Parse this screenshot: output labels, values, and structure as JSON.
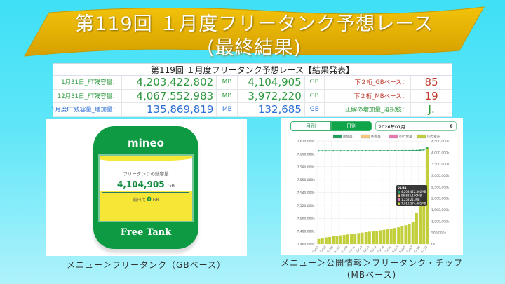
{
  "banner": {
    "line1": "第119回 １月度フリータンク予想レース",
    "line2": "(最終結果)"
  },
  "table": {
    "title": "第119回 １月度フリータンク予想レース【結果発表】",
    "rows": [
      {
        "label": "1月31日_FT残容量：",
        "mb": "4,203,422,802",
        "mb_unit": "MB",
        "gb": "4,104,905",
        "gb_unit": "GB",
        "k": "下２桁_GBベース：",
        "v": "85",
        "color": "#2e9a3e",
        "kcolor": "#c0392b"
      },
      {
        "label": "12月31日_FT残容量：",
        "mb": "4,067,552,983",
        "mb_unit": "MB",
        "gb": "3,972,220",
        "gb_unit": "GB",
        "k": "下２桁_MBベース：",
        "v": "19",
        "color": "#2e9a3e",
        "kcolor": "#c0392b"
      },
      {
        "label": "1月度FT残容量_増加量：",
        "mb": "135,869,819",
        "mb_unit": "MB",
        "gb": "132,685",
        "gb_unit": "GB",
        "k": "正解の増加量_選択肢：",
        "v": "J.",
        "color": "#2f6fd6",
        "kcolor": "#2e9a3e"
      }
    ]
  },
  "tank": {
    "logo": "mineo",
    "label": "フリータンクの残容量",
    "value": "4,104,905",
    "unit": "GB",
    "diff_label": "前日比",
    "diff_value": "0",
    "diff_unit": "GB",
    "footer": "Free Tank"
  },
  "caption_left": "メニュー＞フリータンク（GBベース）",
  "caption_right_1": "メニュー＞公開情報＞フリータンク・チップ",
  "caption_right_2": "(MBベース)",
  "chart_panel": {
    "tabs": [
      "月別",
      "日別"
    ],
    "active_tab": "日別",
    "select_value": "2026年01月",
    "select_icon": "updown-arrows-icon"
  },
  "chart_data": {
    "type": "bar+line",
    "legend": [
      "残容量",
      "IN容量",
      "OUT容量",
      "INの累計"
    ],
    "colors": {
      "残容量": "#1e9e5a",
      "IN容量": "#f7c97a",
      "OUT容量": "#e879b0",
      "INの累計": "#c3cf3a"
    },
    "legend_position": "top",
    "grid": true,
    "x": [
      "01/01",
      "01/02",
      "01/03",
      "01/04",
      "01/05",
      "01/06",
      "01/07",
      "01/08",
      "01/09",
      "01/10",
      "01/11",
      "01/12",
      "01/13",
      "01/14",
      "01/15",
      "01/16",
      "01/17",
      "01/18",
      "01/19",
      "01/20",
      "01/21",
      "01/22",
      "01/23",
      "01/24",
      "01/25",
      "01/26",
      "01/27",
      "01/28",
      "01/29",
      "01/30",
      "01/31"
    ],
    "x_tick_labels": [
      "01/01",
      "01/03",
      "01/05",
      "01/07",
      "01/09",
      "01/11",
      "01/13",
      "01/15",
      "01/17",
      "01/19",
      "01/21",
      "01/23",
      "01/25",
      "01/27",
      "01/29",
      "01/31"
    ],
    "left_axis": {
      "ticks": [
        "7,620,000k",
        "7,600,000k",
        "7,580,000k",
        "7,560,000k",
        "7,540,000k",
        "7,520,000k",
        "7,500,000k",
        "7,480,000k",
        "7,460,000k"
      ],
      "ylim": [
        7460000,
        7620000
      ]
    },
    "right_axis": {
      "ticks": [
        "4,500,000k",
        "4,000,000k",
        "3,500,000k",
        "3,000,000k",
        "2,500,000k",
        "2,000,000k",
        "1,500,000k",
        "1,000,000k",
        "500,000k",
        "0k"
      ],
      "ylim": [
        0,
        4500000
      ]
    },
    "series": [
      {
        "name": "残容量",
        "type": "line",
        "axis": "right",
        "values": [
          4065000,
          4066000,
          4066000,
          4066000,
          4067000,
          4067000,
          4067000,
          4068000,
          4068000,
          4068000,
          4068000,
          4069000,
          4069000,
          4069000,
          4070000,
          4070000,
          4070000,
          4071000,
          4071000,
          4071000,
          4072000,
          4072000,
          4073000,
          4074000,
          4075000,
          4077000,
          4080000,
          4085000,
          4095000,
          4110000,
          4203422
        ]
      },
      {
        "name": "INの累計",
        "type": "bar",
        "axis": "right",
        "values": [
          220000,
          260000,
          290000,
          310000,
          340000,
          360000,
          380000,
          400000,
          420000,
          440000,
          460000,
          480000,
          500000,
          520000,
          540000,
          560000,
          580000,
          600000,
          620000,
          640000,
          670000,
          700000,
          730000,
          770000,
          820000,
          880000,
          960000,
          1350000,
          1650000,
          2000000,
          4200000
        ]
      }
    ],
    "tooltip": {
      "title": "01/31",
      "lines": [
        "4,203,422,802MB",
        "98,833,100MB",
        "1,258,213MB",
        "7,610,374,485MB"
      ]
    }
  }
}
